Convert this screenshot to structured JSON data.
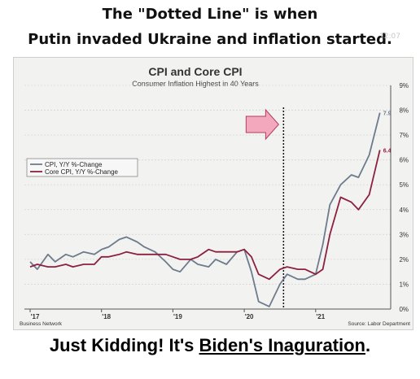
{
  "captions": {
    "top_line1": "The \"Dotted Line\" is when",
    "top_line2": "Putin invaded Ukraine and inflation started.",
    "watermark": "12:07",
    "bottom_prefix": "Just Kidding! It's ",
    "bottom_link": "Biden's Inaguration",
    "bottom_suffix": "."
  },
  "chart_data": {
    "type": "line",
    "title": "CPI and Core CPI",
    "subtitle": "Consumer Inflation Highest in 40 Years",
    "source_left": "Business Network",
    "source_right": "Source: Labor Department",
    "x_tick_labels": [
      "'17",
      "'18",
      "'19",
      "'20",
      "'21"
    ],
    "x_ticks": [
      2017,
      2018,
      2019,
      2020,
      2021
    ],
    "xlim": [
      2016.92,
      2021.96
    ],
    "y_tick_labels": [
      "0%",
      "1%",
      "2%",
      "3%",
      "4%",
      "5%",
      "6%",
      "7%",
      "8%",
      "9%"
    ],
    "ylim": [
      0,
      9
    ],
    "y_axis_side": "right",
    "legend_position": "left-center",
    "annotation_vline_x": 2020.55,
    "arrow_color": "#f4a8be",
    "series": [
      {
        "name": "CPI, Y/Y %-Change",
        "color": "#6d7b8d",
        "end_label": "7.9",
        "x": [
          2017.0,
          2017.1,
          2017.25,
          2017.35,
          2017.5,
          2017.6,
          2017.75,
          2017.9,
          2018.0,
          2018.1,
          2018.25,
          2018.35,
          2018.5,
          2018.6,
          2018.75,
          2018.9,
          2019.0,
          2019.1,
          2019.25,
          2019.35,
          2019.5,
          2019.6,
          2019.75,
          2019.9,
          2020.0,
          2020.1,
          2020.2,
          2020.35,
          2020.5,
          2020.6,
          2020.75,
          2020.85,
          2021.0,
          2021.1,
          2021.2,
          2021.35,
          2021.5,
          2021.6,
          2021.75,
          2021.9
        ],
        "y": [
          1.9,
          1.6,
          2.2,
          1.9,
          2.2,
          2.1,
          2.3,
          2.2,
          2.4,
          2.5,
          2.8,
          2.9,
          2.7,
          2.5,
          2.3,
          1.9,
          1.6,
          1.5,
          2.0,
          1.8,
          1.7,
          2.0,
          1.8,
          2.3,
          2.4,
          1.5,
          0.3,
          0.1,
          1.0,
          1.4,
          1.2,
          1.2,
          1.4,
          2.6,
          4.2,
          5.0,
          5.4,
          5.3,
          6.2,
          7.9
        ]
      },
      {
        "name": "Core CPI, Y/Y %-Change",
        "color": "#8b2040",
        "end_label": "6.4",
        "x": [
          2017.0,
          2017.1,
          2017.25,
          2017.35,
          2017.5,
          2017.6,
          2017.75,
          2017.9,
          2018.0,
          2018.1,
          2018.25,
          2018.35,
          2018.5,
          2018.6,
          2018.75,
          2018.9,
          2019.0,
          2019.1,
          2019.25,
          2019.35,
          2019.5,
          2019.6,
          2019.75,
          2019.9,
          2020.0,
          2020.1,
          2020.2,
          2020.35,
          2020.5,
          2020.6,
          2020.75,
          2020.85,
          2021.0,
          2021.1,
          2021.2,
          2021.35,
          2021.5,
          2021.6,
          2021.75,
          2021.9
        ],
        "y": [
          1.7,
          1.8,
          1.7,
          1.7,
          1.8,
          1.7,
          1.8,
          1.8,
          2.1,
          2.1,
          2.2,
          2.3,
          2.2,
          2.2,
          2.2,
          2.2,
          2.1,
          2.0,
          2.0,
          2.1,
          2.4,
          2.3,
          2.3,
          2.3,
          2.4,
          2.1,
          1.4,
          1.2,
          1.6,
          1.7,
          1.6,
          1.6,
          1.4,
          1.6,
          3.0,
          4.5,
          4.3,
          4.0,
          4.6,
          6.4
        ]
      }
    ]
  }
}
